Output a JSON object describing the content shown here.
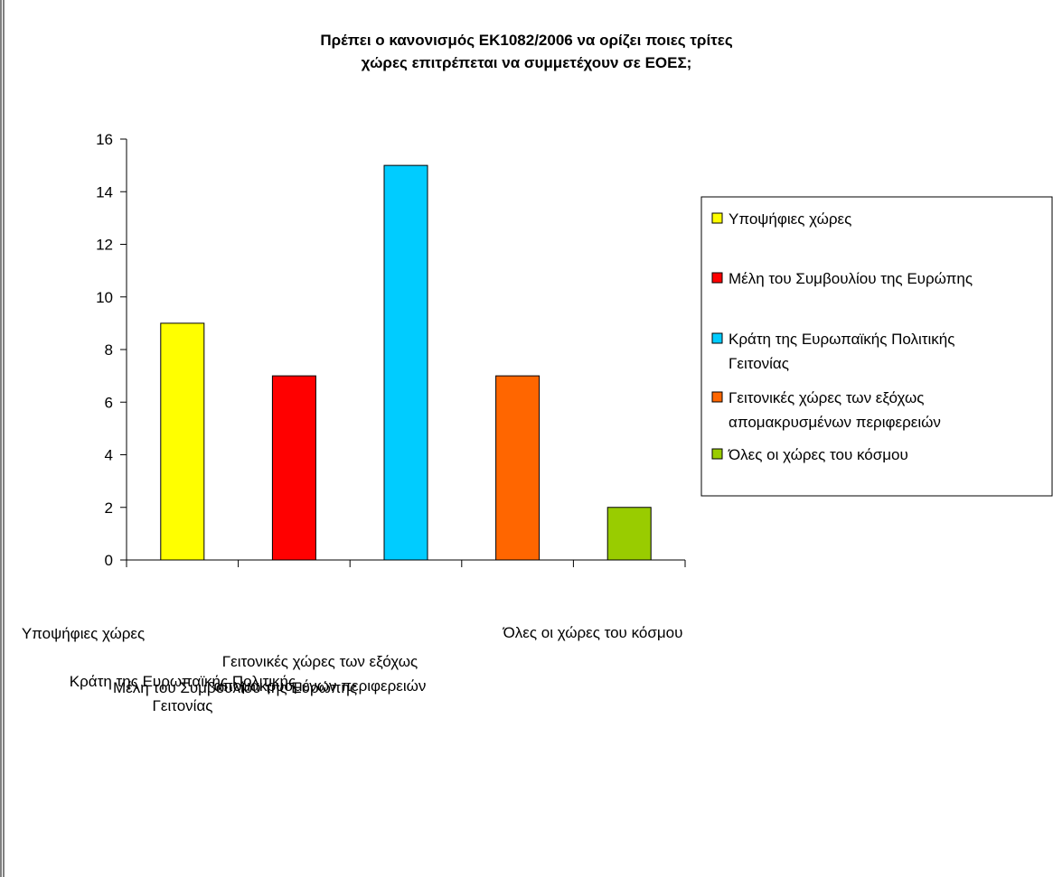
{
  "chart_data": {
    "type": "bar",
    "title_lines": [
      "Πρέπει ο κανονισμός ΕΚ1082/2006  να ορίζει ποιες τρίτες",
      "χώρες επιτρέπεται να συμμετέχουν σε ΕΟΕΣ;"
    ],
    "categories": [
      "Υποψήφιες χώρες",
      "Μέλη του Συμβουλίου της Ευρώπης",
      "Κράτη της  Ευρωπαϊκής Πολιτικής Γειτονίας",
      "Γειτονικές χώρες των εξόχως απομακρυσμένων περιφερειών",
      "Όλες οι χώρες του κόσμου"
    ],
    "values": [
      9,
      7,
      15,
      7,
      2
    ],
    "colors": [
      "#ffff00",
      "#ff0000",
      "#00ccff",
      "#ff6600",
      "#99cc00"
    ],
    "ylim": [
      0,
      16
    ],
    "yticks": [
      "0",
      "2",
      "4",
      "6",
      "8",
      "10",
      "12",
      "14",
      "16"
    ],
    "legend": {
      "placement": "right",
      "entries": [
        {
          "label_lines": [
            "Υποψήφιες χώρες"
          ]
        },
        {
          "label_lines": [
            "Μέλη του Συμβουλίου της Ευρώπης"
          ]
        },
        {
          "label_lines": [
            "Κράτη της  Ευρωπαϊκής Πολιτικής",
            "Γειτονίας"
          ]
        },
        {
          "label_lines": [
            "Γειτονικές χώρες των εξόχως",
            "απομακρυσμένων περιφερειών"
          ]
        },
        {
          "label_lines": [
            "Όλες οι χώρες του κόσμου"
          ]
        }
      ]
    },
    "x_tick_labels": [
      {
        "lines": [
          "Υποψήφιες χώρες"
        ]
      },
      {
        "lines": [
          "Μέλη του Συμβουλίου της Ευρώπης"
        ]
      },
      {
        "lines": [
          "Κράτη της  Ευρωπαϊκής Πολιτικής",
          "Γειτονίας"
        ]
      },
      {
        "lines": [
          "Γειτονικές χώρες των εξόχως",
          "απομακρυσμένων περιφερειών"
        ]
      },
      {
        "lines": [
          "Όλες οι χώρες του κόσμου"
        ]
      }
    ],
    "grid": false
  }
}
